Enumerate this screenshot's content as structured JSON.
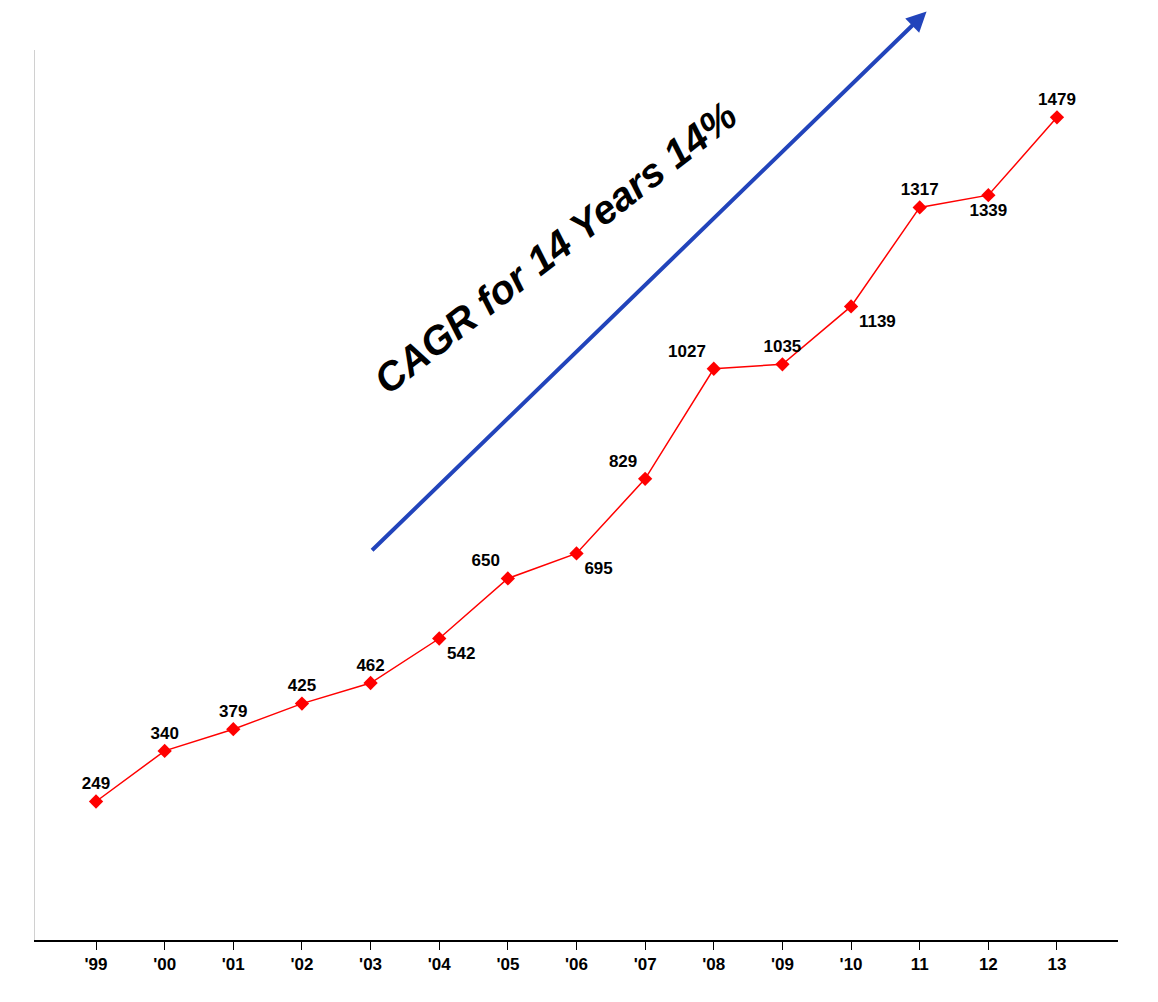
{
  "chart_data": {
    "type": "line",
    "categories": [
      "'99",
      "'00",
      "'01",
      "'02",
      "'03",
      "'04",
      "'05",
      "'06",
      "'07",
      "'08",
      "'09",
      "'10",
      "11",
      "12",
      "13"
    ],
    "values": [
      249,
      340,
      379,
      425,
      462,
      542,
      650,
      695,
      829,
      1027,
      1035,
      1139,
      1317,
      1339,
      1479
    ],
    "color": "#ff0000",
    "marker": "diamond",
    "annotations": [
      "CAGR for 14 Years 14%"
    ],
    "ylim": [
      0,
      1600
    ],
    "yticks": [],
    "grid": false,
    "data_labels": true,
    "tick_labels": "x"
  }
}
